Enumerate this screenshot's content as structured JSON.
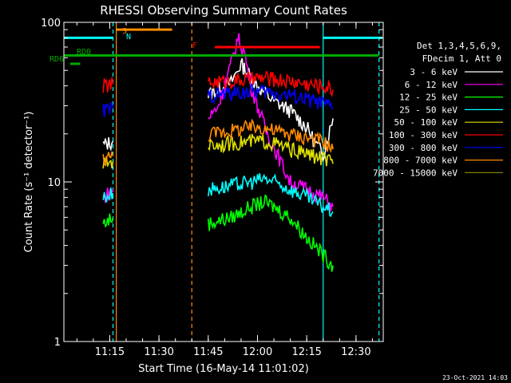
{
  "chart_data": {
    "type": "line",
    "title": "RHESSI Observing Summary Count Rates",
    "xlabel": "Start Time (16-May-14 11:01:02)",
    "ylabel": "Count Rate (s⁻¹ detector⁻¹)",
    "y_scale": "log",
    "ylim": [
      1,
      100
    ],
    "xlim": [
      "11:01",
      "12:38"
    ],
    "x_ticks": [
      "11:15",
      "11:30",
      "11:45",
      "12:00",
      "12:15",
      "12:30"
    ],
    "y_ticks": [
      "1",
      "10",
      "100"
    ],
    "timestamp": "23-Oct-2021 14:03",
    "legend": {
      "header1": "Det 1,3,4,5,6,9,",
      "header2": "FDecim 1, Att 0",
      "placement": "right"
    },
    "series": [
      {
        "name": "3 - 6 keV",
        "color": "#ffffff",
        "x": [
          "11:13",
          "11:16",
          "11:40",
          "11:45",
          "11:52",
          "11:55",
          "12:00",
          "12:05",
          "12:10",
          "12:15",
          "12:18",
          "12:20",
          "12:23"
        ],
        "y": [
          17,
          18,
          null,
          35,
          42,
          55,
          40,
          32,
          28,
          22,
          17,
          15,
          25
        ]
      },
      {
        "name": "6 - 12 keV",
        "color": "#ff00ff",
        "x": [
          "11:13",
          "11:16",
          "11:40",
          "11:45",
          "11:48",
          "11:52",
          "11:54",
          "11:56",
          "11:58",
          "12:00",
          "12:03",
          "12:06",
          "12:10",
          "12:15",
          "12:20",
          "12:23"
        ],
        "y": [
          8,
          9,
          null,
          25,
          30,
          55,
          80,
          65,
          40,
          30,
          20,
          15,
          10,
          9,
          8,
          7
        ]
      },
      {
        "name": "12 - 25 keV",
        "color": "#00ff00",
        "x": [
          "11:13",
          "11:16",
          "11:40",
          "11:45",
          "11:52",
          "11:58",
          "12:02",
          "12:05",
          "12:10",
          "12:15",
          "12:20",
          "12:23"
        ],
        "y": [
          5.5,
          6,
          null,
          5.5,
          6,
          7,
          7.5,
          7,
          6,
          4.5,
          3.5,
          3
        ]
      },
      {
        "name": "25 - 50 keV",
        "color": "#00ffff",
        "x": [
          "11:13",
          "11:16",
          "11:40",
          "11:45",
          "11:52",
          "11:58",
          "12:02",
          "12:05",
          "12:10",
          "12:15",
          "12:20",
          "12:23"
        ],
        "y": [
          8,
          8.5,
          null,
          9,
          9.5,
          10,
          10.5,
          10,
          9,
          8,
          7,
          6.5
        ]
      },
      {
        "name": "50 - 100 keV",
        "color": "#e0e000",
        "x": [
          "11:13",
          "11:16",
          "11:40",
          "11:45",
          "11:52",
          "11:58",
          "12:02",
          "12:05",
          "12:10",
          "12:15",
          "12:20",
          "12:23"
        ],
        "y": [
          13,
          13.5,
          null,
          17,
          17.5,
          18,
          18,
          17.5,
          16,
          15,
          14,
          13
        ]
      },
      {
        "name": "100 - 300 keV",
        "color": "#ff0000",
        "x": [
          "11:13",
          "11:16",
          "11:40",
          "11:45",
          "11:52",
          "11:58",
          "12:02",
          "12:05",
          "12:10",
          "12:15",
          "12:20",
          "12:23"
        ],
        "y": [
          40,
          41,
          null,
          42,
          43,
          44,
          45,
          44,
          43,
          41,
          40,
          38
        ]
      },
      {
        "name": "300 - 800 keV",
        "color": "#0000ff",
        "x": [
          "11:13",
          "11:16",
          "11:40",
          "11:45",
          "11:52",
          "11:58",
          "12:02",
          "12:05",
          "12:10",
          "12:15",
          "12:20",
          "12:23"
        ],
        "y": [
          28,
          29,
          null,
          35,
          36,
          37,
          37,
          36,
          35,
          33,
          31,
          29
        ]
      },
      {
        "name": "800 - 7000 keV",
        "color": "#ff8c00",
        "x": [
          "11:13",
          "11:16",
          "11:40",
          "11:45",
          "11:52",
          "11:58",
          "12:02",
          "12:05",
          "12:10",
          "12:15",
          "12:20",
          "12:23"
        ],
        "y": [
          14,
          14.5,
          null,
          20,
          21,
          22,
          22,
          21,
          20,
          19,
          18,
          16
        ]
      },
      {
        "name": "7000 - 15000 keV",
        "color": "#808000",
        "x": [],
        "y": []
      }
    ],
    "annotations": {
      "labels": [
        {
          "text": "S",
          "color": "#ff8c00"
        },
        {
          "text": "N",
          "color": "#00ffff"
        },
        {
          "text": "F",
          "color": "#ff0000"
        },
        {
          "text": "RD0",
          "color": "#00aa00"
        },
        {
          "text": "RD6",
          "color": "#00aa00"
        }
      ],
      "bars": [
        {
          "name": "SAA",
          "color": "#ff8c00",
          "x": [
            "11:17",
            "11:34"
          ],
          "y": 90
        },
        {
          "name": "Night",
          "color": "#00ffff",
          "x": [
            "11:01",
            "11:16"
          ],
          "y": 80
        },
        {
          "name": "Night",
          "color": "#00ffff",
          "x": [
            "12:20",
            "12:38"
          ],
          "y": 80
        },
        {
          "name": "Flare",
          "color": "#ff0000",
          "x": [
            "11:47",
            "12:19"
          ],
          "y": 70
        },
        {
          "name": "RD0",
          "color": "#00aa00",
          "x": [
            "11:01",
            "12:37"
          ],
          "y": 62
        },
        {
          "name": "RD6",
          "color": "#00aa00",
          "x": [
            "11:03",
            "11:06"
          ],
          "y": 55
        }
      ],
      "vlines": [
        {
          "color": "#00ffff",
          "x": "11:16",
          "style": "dashed"
        },
        {
          "color": "#ff8c00",
          "x": "11:17",
          "style": "solid"
        },
        {
          "color": "#ff8c00",
          "x": "11:40",
          "style": "dashed"
        },
        {
          "color": "#00ffff",
          "x": "12:20",
          "style": "solid"
        },
        {
          "color": "#00ffff",
          "x": "12:37",
          "style": "dashed"
        }
      ]
    }
  }
}
